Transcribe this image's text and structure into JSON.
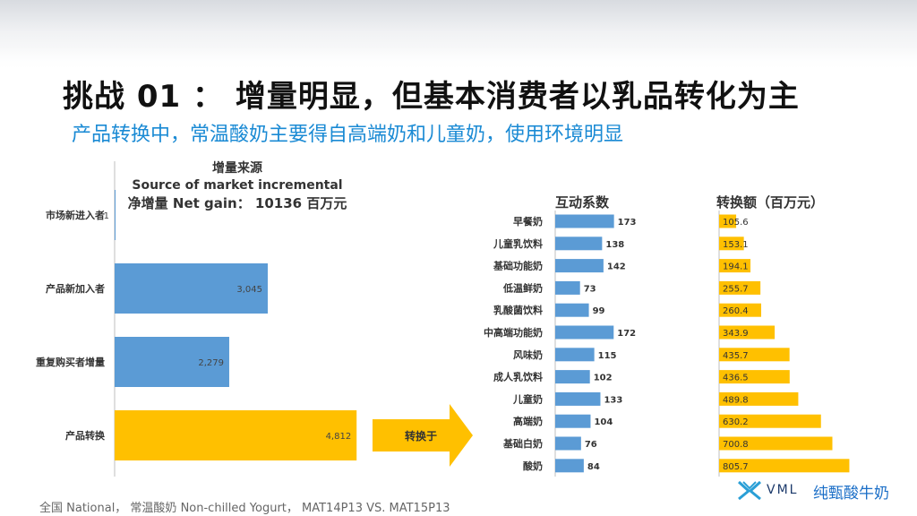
{
  "title": "挑战 01 ： 增量明显，但基本消费者以乳品转化为主",
  "subtitle": "产品转换中，常温酸奶主要得自高端奶和儿童奶，使用环境明显",
  "footer": "全国 National， 常温酸奶 Non-chilled Yogurt， MAT14P13 VS. MAT15P13",
  "logo_text": "VML",
  "brand_text": "纯甄酸牛奶",
  "arrow_label": "转换于",
  "colors": {
    "blue": "#5b9bd5",
    "gold": "#ffc000",
    "title_blue": "#1a8ad4"
  },
  "chart_data": [
    {
      "type": "bar",
      "orientation": "horizontal",
      "title_lines": [
        "增量来源",
        "Source of market incremental",
        "净增量  Net gain：  10136  百万元"
      ],
      "categories": [
        "市场新进入者",
        "产品新加入者",
        "重复购买者增量",
        "产品转换"
      ],
      "values": [
        1,
        3045,
        2279,
        4812
      ],
      "value_labels": [
        "1",
        "3,045",
        "2,279",
        "4,812"
      ],
      "bar_colors": [
        "#5b9bd5",
        "#5b9bd5",
        "#5b9bd5",
        "#ffc000"
      ],
      "xlim": [
        0,
        5200
      ]
    },
    {
      "type": "bar",
      "orientation": "horizontal",
      "title": "互动系数",
      "categories": [
        "早餐奶",
        "儿童乳饮料",
        "基础功能奶",
        "低温鲜奶",
        "乳酸菌饮料",
        "中高端功能奶",
        "风味奶",
        "成人乳饮料",
        "儿童奶",
        "高端奶",
        "基础白奶",
        "酸奶"
      ],
      "values": [
        173,
        138,
        142,
        73,
        99,
        172,
        115,
        102,
        133,
        104,
        76,
        84
      ],
      "value_labels": [
        "173",
        "138",
        "142",
        "73",
        "99",
        "172",
        "115",
        "102",
        "133",
        "104",
        "76",
        "84"
      ],
      "color": "#5b9bd5",
      "xlim": [
        0,
        195
      ]
    },
    {
      "type": "bar",
      "orientation": "horizontal",
      "title": "转换额（百万元）",
      "categories": [
        "早餐奶",
        "儿童乳饮料",
        "基础功能奶",
        "低温鲜奶",
        "乳酸菌饮料",
        "中高端功能奶",
        "风味奶",
        "成人乳饮料",
        "儿童奶",
        "高端奶",
        "基础白奶",
        "酸奶"
      ],
      "values": [
        105.6,
        153.1,
        194.1,
        255.7,
        260.4,
        343.9,
        435.7,
        436.5,
        489.8,
        630.2,
        700.8,
        805.7
      ],
      "value_labels": [
        "105.6",
        "153.1",
        "194.1",
        "255.7",
        "260.4",
        "343.9",
        "435.7",
        "436.5",
        "489.8",
        "630.2",
        "700.8",
        "805.7"
      ],
      "color": "#ffc000",
      "xlim": [
        0,
        975
      ]
    }
  ]
}
